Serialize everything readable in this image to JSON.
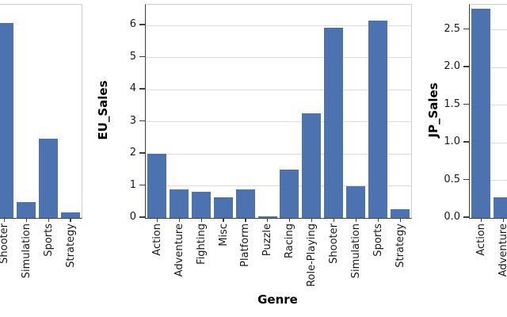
{
  "colors": {
    "bar": "#4c72b0",
    "grid": "#dcdcdc",
    "panel_border": "#cfcfcf",
    "spine": "#3f3f3f",
    "tick_mark": "#3f3f3f",
    "tick_text": "#1a1a1a",
    "axis_title_text": "#000000",
    "background": "#ffffff"
  },
  "chart_data": {
    "type": "bar",
    "title": "",
    "xlabel": "Genre",
    "categories": [
      "Action",
      "Adventure",
      "Fighting",
      "Misc",
      "Platform",
      "Puzzle",
      "Racing",
      "Role-Playing",
      "Shooter",
      "Simulation",
      "Sports",
      "Strategy"
    ],
    "grid": "horizontal light gridlines on",
    "legend": "none",
    "panels": [
      {
        "id": "left-facet-cropped",
        "ylabel": "",
        "ylim": [
          0,
          6.64
        ],
        "yticks": [],
        "bars": [
          {
            "category": "Shooter",
            "value": 6.07
          },
          {
            "category": "Simulation",
            "value": 0.5
          },
          {
            "category": "Sports",
            "value": 2.47
          },
          {
            "category": "Strategy",
            "value": 0.17
          }
        ]
      },
      {
        "id": "eu-sales",
        "ylabel": "EU_Sales",
        "xlabel": "Genre",
        "ylim": [
          0,
          6.64
        ],
        "yticks": [
          {
            "label": "0",
            "value": 0
          },
          {
            "label": "1",
            "value": 1
          },
          {
            "label": "2",
            "value": 2
          },
          {
            "label": "3",
            "value": 3
          },
          {
            "label": "4",
            "value": 4
          },
          {
            "label": "5",
            "value": 5
          },
          {
            "label": "6",
            "value": 6
          }
        ],
        "bars": [
          {
            "category": "Action",
            "value": 2.0
          },
          {
            "category": "Adventure",
            "value": 0.9
          },
          {
            "category": "Fighting",
            "value": 0.82
          },
          {
            "category": "Misc",
            "value": 0.64
          },
          {
            "category": "Platform",
            "value": 0.89
          },
          {
            "category": "Puzzle",
            "value": 0.06
          },
          {
            "category": "Racing",
            "value": 1.5
          },
          {
            "category": "Role-Playing",
            "value": 3.25
          },
          {
            "category": "Shooter",
            "value": 5.93
          },
          {
            "category": "Simulation",
            "value": 1.0
          },
          {
            "category": "Sports",
            "value": 6.15
          },
          {
            "category": "Strategy",
            "value": 0.28
          }
        ]
      },
      {
        "id": "jp-sales",
        "ylabel": "JP_Sales",
        "ylim": [
          0,
          2.83
        ],
        "yticks": [
          {
            "label": "0.0",
            "value": 0
          },
          {
            "label": "0.5",
            "value": 0.5
          },
          {
            "label": "1.0",
            "value": 1.0
          },
          {
            "label": "1.5",
            "value": 1.5
          },
          {
            "label": "2.0",
            "value": 2.0
          },
          {
            "label": "2.5",
            "value": 2.5
          }
        ],
        "bars": [
          {
            "category": "Action",
            "value": 2.78
          },
          {
            "category": "Adventure",
            "value": 0.27
          }
        ]
      }
    ]
  }
}
